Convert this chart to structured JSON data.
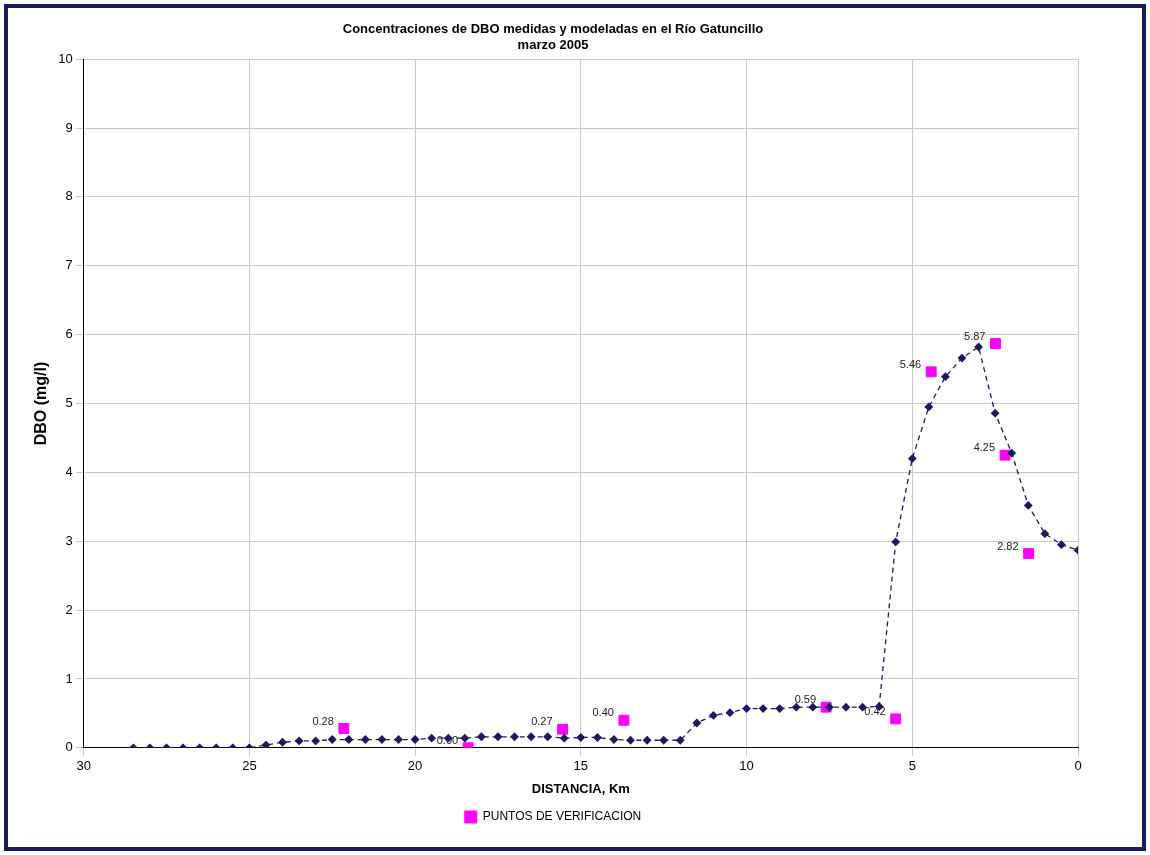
{
  "chart_data": {
    "type": "line",
    "title": "Concentraciones de DBO medidas y modeladas en el Río Gatuncillo",
    "subtitle": "marzo 2005",
    "xlabel": "DISTANCIA, Km",
    "ylabel": "DBO (mg/l)",
    "xlim": [
      30,
      0
    ],
    "xticks": [
      30,
      25,
      20,
      15,
      10,
      5,
      0
    ],
    "ylim": [
      0,
      10
    ],
    "yticks": [
      0,
      1,
      2,
      3,
      4,
      5,
      6,
      7,
      8,
      9,
      10
    ],
    "grid": true,
    "legend": "bottom",
    "series": [
      {
        "type": "line",
        "color": "#1a1a5e",
        "marker": "diamond",
        "line_style": "dashed",
        "x": [
          28.5,
          28,
          27.5,
          27,
          26.5,
          26,
          25.5,
          25,
          24.5,
          24,
          23.5,
          23,
          22.5,
          22,
          21.5,
          21,
          20.5,
          20,
          19.5,
          19,
          18.5,
          18,
          17.5,
          17,
          16.5,
          16,
          15.5,
          15,
          14.5,
          14,
          13.5,
          13,
          12.5,
          12,
          11.5,
          11,
          10.5,
          10,
          9.5,
          9,
          8.5,
          8,
          7.5,
          7,
          6.5,
          6,
          5.5,
          5,
          4.5,
          4,
          3.5,
          3,
          2.5,
          2,
          1.5,
          1,
          0.5,
          0
        ],
        "values": [
          0,
          0,
          0,
          0,
          0,
          0,
          0,
          0,
          0.04,
          0.08,
          0.1,
          0.1,
          0.12,
          0.12,
          0.12,
          0.12,
          0.12,
          0.12,
          0.14,
          0.14,
          0.14,
          0.16,
          0.16,
          0.16,
          0.16,
          0.16,
          0.14,
          0.15,
          0.15,
          0.12,
          0.11,
          0.11,
          0.11,
          0.11,
          0.36,
          0.47,
          0.51,
          0.57,
          0.57,
          0.57,
          0.59,
          0.59,
          0.59,
          0.59,
          0.59,
          0.6,
          2.99,
          4.2,
          4.95,
          5.39,
          5.66,
          5.82,
          4.86,
          4.28,
          3.52,
          3.11,
          2.95,
          2.87
        ]
      },
      {
        "type": "scatter",
        "name": "PUNTOS DE VERIFICACION",
        "color": "#ff00ff",
        "marker": "square",
        "x": [
          22.15,
          18.4,
          15.55,
          13.7,
          7.6,
          5.5,
          4.43,
          2.49,
          2.2,
          1.49
        ],
        "values": [
          0.28,
          0,
          0.27,
          0.4,
          0.59,
          0.42,
          5.46,
          5.87,
          4.25,
          2.82
        ],
        "value_labels": [
          "0.28",
          "0.00",
          "0.27",
          "0.40",
          "0.59",
          "0.42",
          "5.46",
          "5.87",
          "4.25",
          "2.82"
        ]
      }
    ]
  }
}
